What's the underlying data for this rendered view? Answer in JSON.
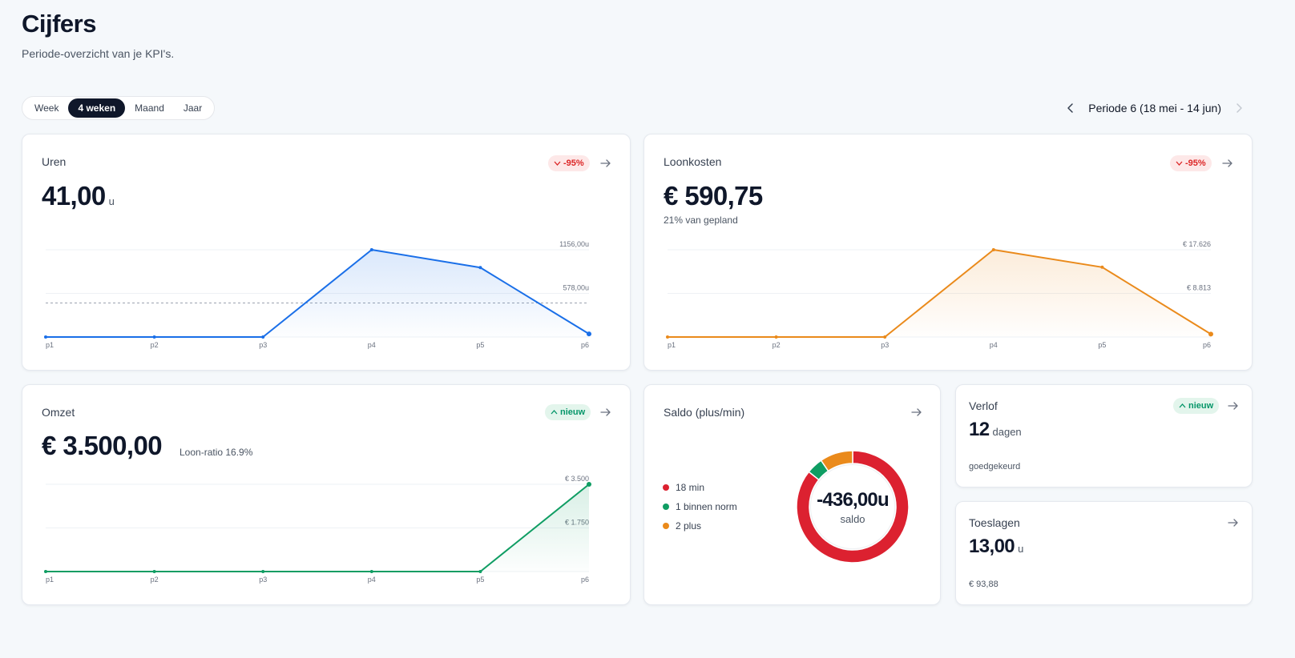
{
  "header": {
    "title": "Cijfers",
    "subtitle": "Periode-overzicht van je KPI's."
  },
  "period_tabs": [
    {
      "label": "Week",
      "active": false
    },
    {
      "label": "4 weken",
      "active": true
    },
    {
      "label": "Maand",
      "active": false
    },
    {
      "label": "Jaar",
      "active": false
    }
  ],
  "period": {
    "label": "Periode 6 (18 mei - 14 jun)"
  },
  "colors": {
    "blue": "#1a6fe8",
    "orange": "#ea8a1b",
    "green": "#0f9d63",
    "red": "#dc2130",
    "badge_neg": "#dc2626",
    "badge_pos": "#059669"
  },
  "icons": {
    "prev": "chevron-left-icon",
    "next": "chevron-right-icon",
    "open": "arrow-right-icon",
    "down": "chevron-down-icon",
    "up": "chevron-up-icon"
  },
  "uren": {
    "title": "Uren",
    "value": "41,00",
    "unit": "u",
    "badge": "-95%",
    "chart_data": {
      "type": "area",
      "categories": [
        "p1",
        "p2",
        "p3",
        "p4",
        "p5",
        "p6"
      ],
      "values": [
        0,
        0,
        0,
        1156,
        920,
        41
      ],
      "ylim": [
        0,
        1156
      ],
      "ytick_labels": [
        "1156,00u",
        "578,00u"
      ],
      "reference_line": 578,
      "color": "#1a6fe8"
    }
  },
  "loonkosten": {
    "title": "Loonkosten",
    "value": "€ 590,75",
    "sub": "21% van gepland",
    "badge": "-95%",
    "chart_data": {
      "type": "area",
      "categories": [
        "p1",
        "p2",
        "p3",
        "p4",
        "p5",
        "p6"
      ],
      "values": [
        0,
        0,
        0,
        17626,
        14100,
        590.75
      ],
      "ylim": [
        0,
        17626
      ],
      "ytick_labels": [
        "€ 17.626",
        "€ 8.813"
      ],
      "color": "#ea8a1b"
    }
  },
  "omzet": {
    "title": "Omzet",
    "value": "€ 3.500,00",
    "sub": "Loon-ratio 16.9%",
    "badge": "nieuw",
    "chart_data": {
      "type": "area",
      "categories": [
        "p1",
        "p2",
        "p3",
        "p4",
        "p5",
        "p6"
      ],
      "values": [
        0,
        0,
        0,
        0,
        0,
        3500
      ],
      "ylim": [
        0,
        3500
      ],
      "ytick_labels": [
        "€ 3.500",
        "€ 1.750"
      ],
      "color": "#0f9d63"
    }
  },
  "saldo": {
    "title": "Saldo (plus/min)",
    "value": "-436,00u",
    "label": "saldo",
    "chart_data": {
      "type": "pie",
      "categories": [
        "18 min",
        "1 binnen norm",
        "2 plus"
      ],
      "values": [
        18,
        1,
        2
      ],
      "colors": [
        "#dc2130",
        "#0f9d63",
        "#ea8a1b"
      ]
    }
  },
  "verlof": {
    "title": "Verlof",
    "value": "12",
    "unit": "dagen",
    "sub": "goedgekeurd",
    "badge": "nieuw"
  },
  "toeslagen": {
    "title": "Toeslagen",
    "value": "13,00",
    "unit": "u",
    "sub": "€ 93,88"
  }
}
